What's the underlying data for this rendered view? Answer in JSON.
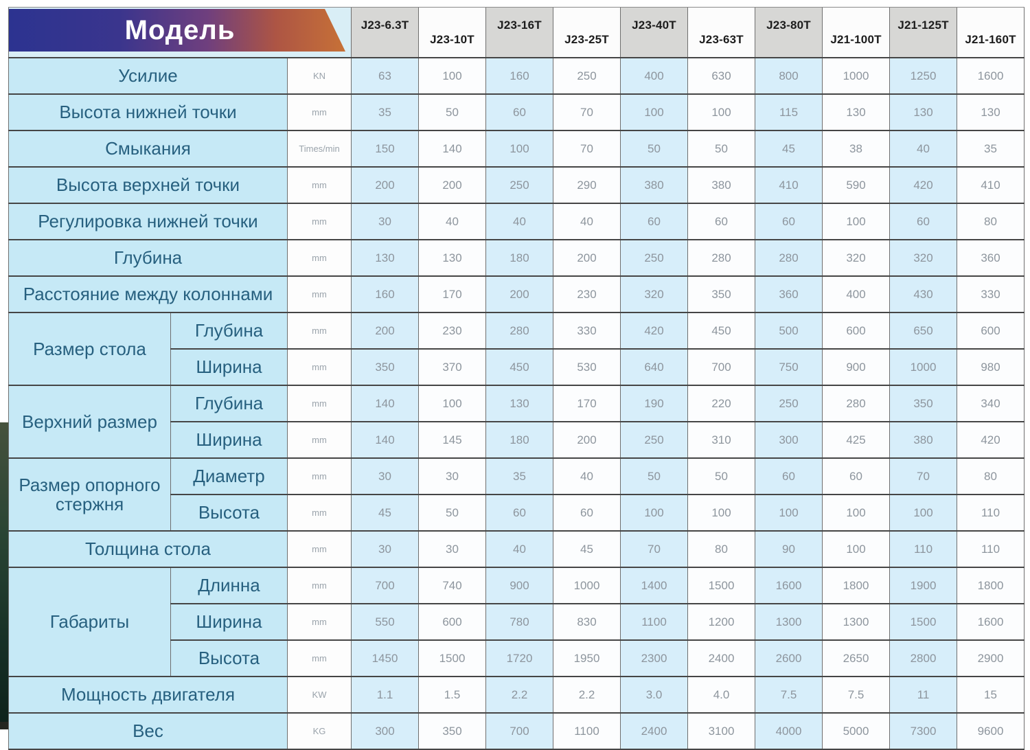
{
  "table": {
    "model_label": "Модель",
    "columns": [
      "J23-6.3T",
      "J23-10T",
      "J23-16T",
      "J23-25T",
      "J23-40T",
      "J23-63T",
      "J23-80T",
      "J21-100T",
      "J21-125T",
      "J21-160T"
    ],
    "rows": [
      {
        "label": "Усилие",
        "unit": "KN",
        "values": [
          "63",
          "100",
          "160",
          "250",
          "400",
          "630",
          "800",
          "1000",
          "1250",
          "1600"
        ]
      },
      {
        "label": "Высота нижней точки",
        "unit": "mm",
        "values": [
          "35",
          "50",
          "60",
          "70",
          "100",
          "100",
          "115",
          "130",
          "130",
          "130"
        ]
      },
      {
        "label": "Смыкания",
        "unit": "Times/min",
        "values": [
          "150",
          "140",
          "100",
          "70",
          "50",
          "50",
          "45",
          "38",
          "40",
          "35"
        ]
      },
      {
        "label": "Высота верхней точки",
        "unit": "mm",
        "values": [
          "200",
          "200",
          "250",
          "290",
          "380",
          "380",
          "410",
          "590",
          "420",
          "410"
        ]
      },
      {
        "label": "Регулировка нижней точки",
        "unit": "mm",
        "values": [
          "30",
          "40",
          "40",
          "40",
          "60",
          "60",
          "60",
          "100",
          "60",
          "80"
        ]
      },
      {
        "label": "Глубина",
        "unit": "mm",
        "values": [
          "130",
          "130",
          "180",
          "200",
          "250",
          "280",
          "280",
          "320",
          "320",
          "360"
        ]
      },
      {
        "label": "Расстояние между колоннами",
        "unit": "mm",
        "values": [
          "160",
          "170",
          "200",
          "230",
          "320",
          "350",
          "360",
          "400",
          "430",
          "330"
        ]
      },
      {
        "group": {
          "label": "Размер стола",
          "span": 2
        },
        "sub": true,
        "label": "Глубина",
        "unit": "mm",
        "values": [
          "200",
          "230",
          "280",
          "330",
          "420",
          "450",
          "500",
          "600",
          "650",
          "600"
        ]
      },
      {
        "sub": true,
        "label": "Ширина",
        "unit": "mm",
        "values": [
          "350",
          "370",
          "450",
          "530",
          "640",
          "700",
          "750",
          "900",
          "1000",
          "980"
        ]
      },
      {
        "group": {
          "label": "Верхний размер",
          "span": 2
        },
        "sub": true,
        "label": "Глубина",
        "unit": "mm",
        "values": [
          "140",
          "100",
          "130",
          "170",
          "190",
          "220",
          "250",
          "280",
          "350",
          "340"
        ]
      },
      {
        "sub": true,
        "label": "Ширина",
        "unit": "mm",
        "values": [
          "140",
          "145",
          "180",
          "200",
          "250",
          "310",
          "300",
          "425",
          "380",
          "420"
        ]
      },
      {
        "group": {
          "label": "Размер опорного стержня",
          "span": 2
        },
        "sub": true,
        "label": "Диаметр",
        "unit": "mm",
        "values": [
          "30",
          "30",
          "35",
          "40",
          "50",
          "50",
          "60",
          "60",
          "70",
          "80"
        ]
      },
      {
        "sub": true,
        "label": "Высота",
        "unit": "mm",
        "values": [
          "45",
          "50",
          "60",
          "60",
          "100",
          "100",
          "100",
          "100",
          "100",
          "110"
        ]
      },
      {
        "label": "Толщина стола",
        "unit": "mm",
        "values": [
          "30",
          "30",
          "40",
          "45",
          "70",
          "80",
          "90",
          "100",
          "110",
          "110"
        ]
      },
      {
        "group": {
          "label": "Габариты",
          "span": 3
        },
        "sub": true,
        "label": "Длинна",
        "unit": "mm",
        "values": [
          "700",
          "740",
          "900",
          "1000",
          "1400",
          "1500",
          "1600",
          "1800",
          "1900",
          "1800"
        ]
      },
      {
        "sub": true,
        "label": "Ширина",
        "unit": "mm",
        "values": [
          "550",
          "600",
          "780",
          "830",
          "1100",
          "1200",
          "1300",
          "1300",
          "1500",
          "1600"
        ]
      },
      {
        "sub": true,
        "label": "Высота",
        "unit": "mm",
        "values": [
          "1450",
          "1500",
          "1720",
          "1950",
          "2300",
          "2400",
          "2600",
          "2650",
          "2800",
          "2900"
        ]
      },
      {
        "label": "Мощность двигателя",
        "unit": "KW",
        "values": [
          "1.1",
          "1.5",
          "2.2",
          "2.2",
          "3.0",
          "4.0",
          "7.5",
          "7.5",
          "11",
          "15"
        ]
      },
      {
        "label": "Вес",
        "unit": "KG",
        "values": [
          "300",
          "350",
          "700",
          "1100",
          "2400",
          "3100",
          "4000",
          "5000",
          "7300",
          "9600"
        ]
      }
    ]
  },
  "colors": {
    "banner_gradient_left": "#2c3390",
    "banner_gradient_mid2": "#6f3f7e",
    "banner_gradient_right": "#c97336",
    "row_label_bg": "#c6e9f6",
    "data_cell_blue": "#d7eefa",
    "header_gray": "#d7d7d5",
    "label_text": "#27607f",
    "value_text": "#8d959d"
  }
}
